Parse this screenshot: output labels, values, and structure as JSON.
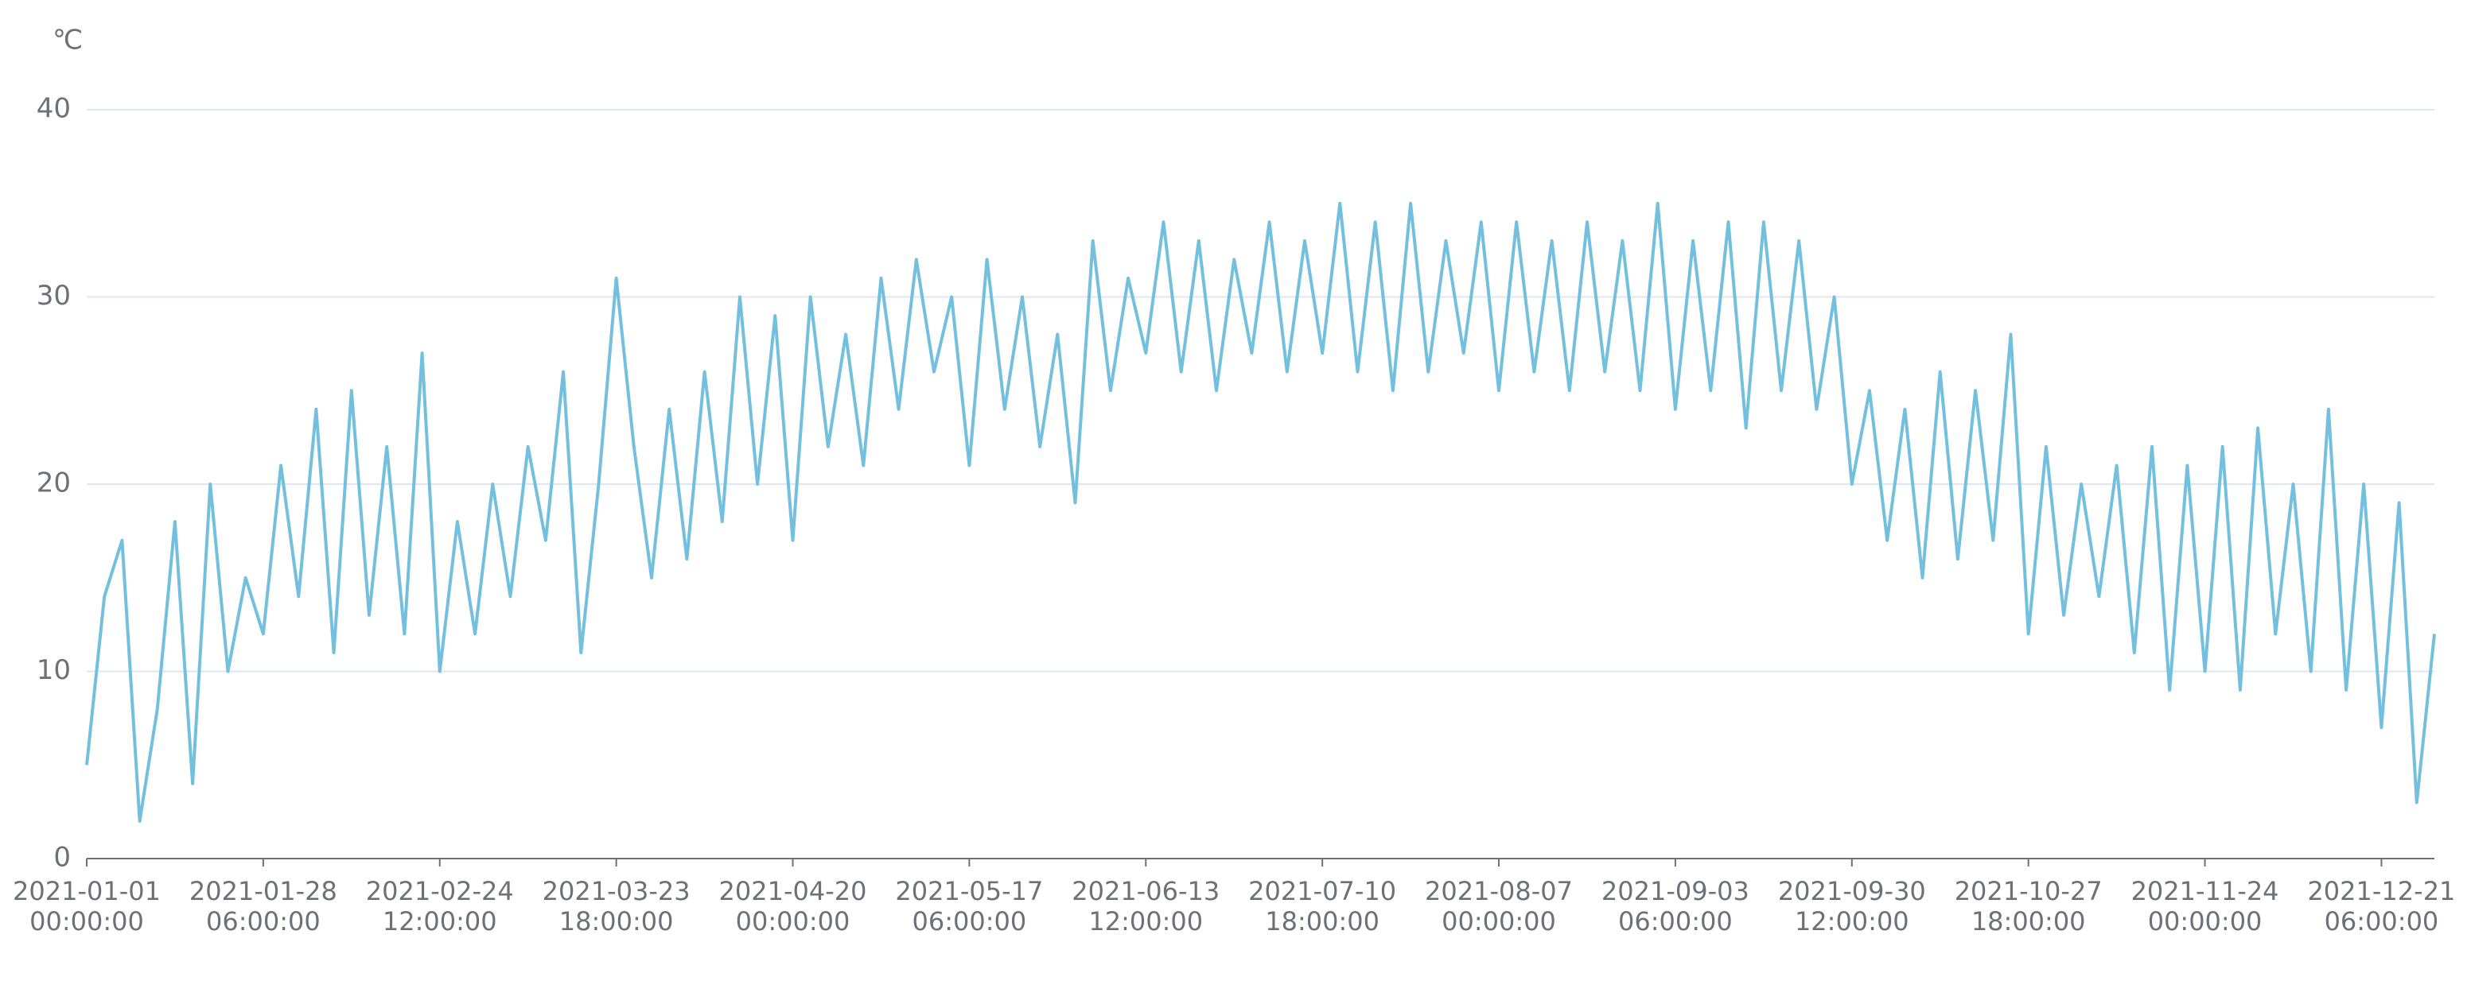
{
  "chart_data": {
    "type": "line",
    "y_label": "℃",
    "categories": [
      "2021-01-01\n00:00:00",
      null,
      null,
      null,
      null,
      null,
      null,
      null,
      null,
      null,
      "2021-01-28\n06:00:00",
      null,
      null,
      null,
      null,
      null,
      null,
      null,
      null,
      null,
      "2021-02-24\n12:00:00",
      null,
      null,
      null,
      null,
      null,
      null,
      null,
      null,
      null,
      "2021-03-23\n18:00:00",
      null,
      null,
      null,
      null,
      null,
      null,
      null,
      null,
      null,
      "2021-04-20\n00:00:00",
      null,
      null,
      null,
      null,
      null,
      null,
      null,
      null,
      null,
      "2021-05-17\n06:00:00",
      null,
      null,
      null,
      null,
      null,
      null,
      null,
      null,
      null,
      "2021-06-13\n12:00:00",
      null,
      null,
      null,
      null,
      null,
      null,
      null,
      null,
      null,
      "2021-07-10\n18:00:00",
      null,
      null,
      null,
      null,
      null,
      null,
      null,
      null,
      null,
      "2021-08-07\n00:00:00",
      null,
      null,
      null,
      null,
      null,
      null,
      null,
      null,
      null,
      "2021-09-03\n06:00:00",
      null,
      null,
      null,
      null,
      null,
      null,
      null,
      null,
      null,
      "2021-09-30\n12:00:00",
      null,
      null,
      null,
      null,
      null,
      null,
      null,
      null,
      null,
      "2021-10-27\n18:00:00",
      null,
      null,
      null,
      null,
      null,
      null,
      null,
      null,
      null,
      "2021-11-24\n00:00:00",
      null,
      null,
      null,
      null,
      null,
      null,
      null,
      null,
      null,
      "2021-12-21\n06:00:00",
      null,
      null,
      null
    ],
    "values": [
      5,
      14,
      17,
      2,
      8,
      18,
      4,
      20,
      10,
      15,
      12,
      21,
      14,
      24,
      11,
      25,
      13,
      22,
      12,
      27,
      10,
      18,
      12,
      20,
      14,
      22,
      17,
      26,
      11,
      20,
      31,
      22,
      15,
      24,
      16,
      26,
      18,
      30,
      20,
      29,
      17,
      30,
      22,
      28,
      21,
      31,
      24,
      32,
      26,
      30,
      21,
      32,
      24,
      30,
      22,
      28,
      19,
      33,
      25,
      31,
      27,
      34,
      26,
      33,
      25,
      32,
      27,
      34,
      26,
      33,
      27,
      35,
      26,
      34,
      25,
      35,
      26,
      33,
      27,
      34,
      25,
      34,
      26,
      33,
      25,
      34,
      26,
      33,
      25,
      35,
      24,
      33,
      25,
      34,
      23,
      34,
      25,
      33,
      24,
      30,
      20,
      25,
      17,
      24,
      15,
      26,
      16,
      25,
      17,
      28,
      12,
      22,
      13,
      20,
      14,
      21,
      11,
      22,
      9,
      21,
      10,
      22,
      9,
      23,
      12,
      20,
      10,
      24,
      9,
      20,
      7,
      19,
      3,
      12
    ],
    "color": "#73c0de",
    "ylim": [
      0,
      40
    ],
    "yticks": [
      0,
      10,
      20,
      30,
      40
    ],
    "grid": true
  }
}
